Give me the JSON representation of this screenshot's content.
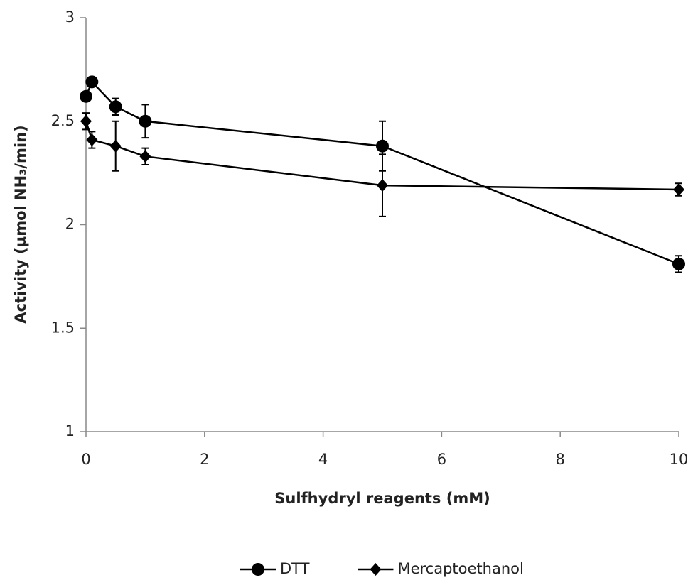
{
  "chart_data": {
    "type": "line",
    "x_label": "Sulfhydryl reagents (mM)",
    "y_label": "Activity (µmol NH₃/min)",
    "xlim": [
      0,
      10
    ],
    "xticks": [
      0,
      2,
      4,
      6,
      8,
      10
    ],
    "ylim": [
      1,
      3
    ],
    "yticks": [
      1,
      1.5,
      2,
      2.5,
      3
    ],
    "legend": "bottom",
    "series": [
      {
        "name": "DTT",
        "color": "#000000",
        "marker": "circle",
        "x": [
          0,
          0.1,
          0.5,
          1,
          5,
          10
        ],
        "values": [
          2.62,
          2.69,
          2.57,
          2.5,
          2.38,
          1.81
        ],
        "errors": [
          0.01,
          0.02,
          0.04,
          0.08,
          0.12,
          0.04
        ]
      },
      {
        "name": "Mercaptoethanol",
        "color": "#000000",
        "marker": "diamond",
        "x": [
          0,
          0.1,
          0.5,
          1,
          5,
          10
        ],
        "values": [
          2.5,
          2.41,
          2.38,
          2.33,
          2.19,
          2.17
        ],
        "errors": [
          0.04,
          0.04,
          0.12,
          0.04,
          0.15,
          0.03
        ]
      }
    ]
  }
}
